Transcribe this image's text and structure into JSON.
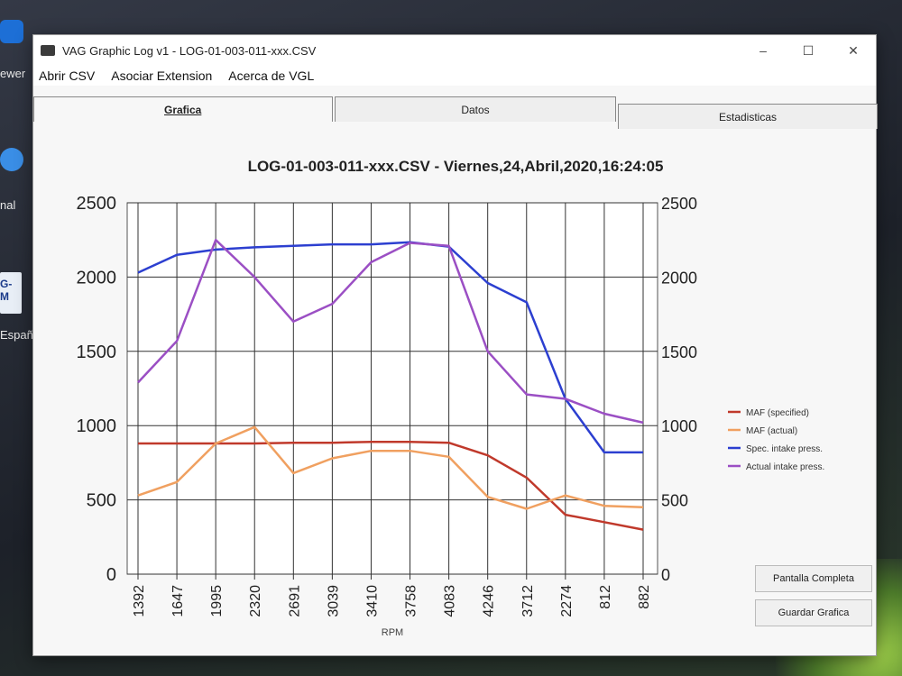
{
  "desktop": {
    "items": [
      {
        "label": "ewer"
      },
      {
        "label": "nal"
      },
      {
        "label": "G-\nM"
      },
      {
        "label": "Españ"
      }
    ]
  },
  "window": {
    "title": "VAG Graphic Log  v1 -  LOG-01-003-011-xxx.CSV",
    "controls": {
      "minimize": "–",
      "maximize": "☐",
      "close": "✕"
    }
  },
  "menu": [
    "Abrir CSV",
    "Asociar Extension",
    "Acerca de VGL"
  ],
  "tabs": [
    {
      "label": "Grafica",
      "active": true
    },
    {
      "label": "Datos",
      "active": false
    },
    {
      "label": "Estadisticas",
      "active": false
    }
  ],
  "buttons": {
    "fullscreen": "Pantalla Completa",
    "save": "Guardar Grafica"
  },
  "chart_data": {
    "type": "line",
    "title": "LOG-01-003-011-xxx.CSV - Viernes,24,Abril,2020,16:24:05",
    "xlabel": "RPM",
    "categories": [
      "1392",
      "1647",
      "1995",
      "2320",
      "2691",
      "3039",
      "3410",
      "3758",
      "4083",
      "4246",
      "3712",
      "2274",
      "812",
      "882"
    ],
    "y_left": {
      "ylim": [
        0,
        2500
      ],
      "ticks": [
        "0",
        "500",
        "1000",
        "1500",
        "2000",
        "2500"
      ]
    },
    "y_right": {
      "ylim": [
        0,
        2500
      ],
      "ticks": [
        "0",
        "500",
        "1000",
        "1500",
        "2000",
        "2500"
      ]
    },
    "grid": true,
    "legend": "right",
    "series": [
      {
        "name": "MAF (specified)",
        "color": "#c0392b",
        "values": [
          880,
          880,
          880,
          880,
          885,
          885,
          890,
          890,
          885,
          800,
          650,
          400,
          350,
          300
        ]
      },
      {
        "name": "MAF (actual)",
        "color": "#f0a060",
        "values": [
          530,
          620,
          880,
          990,
          680,
          780,
          830,
          830,
          790,
          520,
          440,
          530,
          460,
          450
        ]
      },
      {
        "name": "Spec. intake press.",
        "color": "#2c3fd0",
        "values": [
          2030,
          2150,
          2185,
          2200,
          2210,
          2220,
          2220,
          2235,
          2205,
          1960,
          1830,
          1180,
          820,
          820
        ]
      },
      {
        "name": "Actual intake press.",
        "color": "#9b4fc4",
        "values": [
          1290,
          1570,
          2250,
          2000,
          1700,
          1820,
          2100,
          2230,
          2210,
          1500,
          1210,
          1180,
          1080,
          1020
        ]
      }
    ]
  }
}
